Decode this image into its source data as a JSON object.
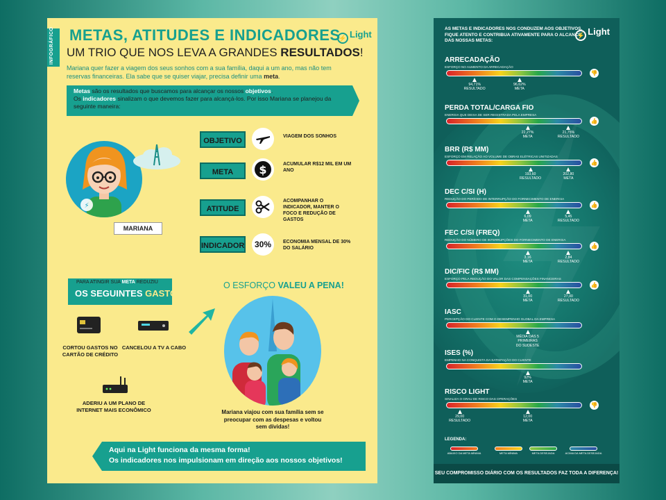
{
  "left": {
    "tab": "INFOGRÁFICO",
    "title": "METAS, ATITUDES E INDICADORES",
    "subtitle_pre": "UM TRIO QUE NOS LEVA A GRANDES ",
    "subtitle_bold": "RESULTADOS",
    "subtitle_post": "!",
    "logo": "Light",
    "intro_pre": "Mariana quer fazer a viagem dos seus sonhos com a sua família, daqui a um ano, mas não tem reservas financeiras. Ela sabe que se quiser viajar, precisa definir uma ",
    "intro_bold": "meta",
    "intro_post": ".",
    "box": {
      "w1": "Metas",
      "t1": " são os resultados que buscamos para alcançar os nossos ",
      "w2": "objetivos",
      "t2": ".",
      "t3": "Os ",
      "w3": "indicadores",
      "t4": " sinalizam o que devemos fazer para alcançá-los. Por isso Mariana se planejou da seguinte maneira:"
    },
    "name_tag": "MARIANA",
    "rows": [
      {
        "label": "OBJETIVO",
        "icon": "airplane-icon",
        "desc": "VIAGEM DOS SONHOS"
      },
      {
        "label": "META",
        "icon": "dollar-icon",
        "desc": "ACUMULAR R$12 MIL EM UM ANO"
      },
      {
        "label": "ATITUDE",
        "icon": "scissors-icon",
        "desc": "ACOMPANHAR O INDICADOR, MANTER O FOCO E REDUÇÃO DE GASTOS"
      },
      {
        "label": "INDICADOR",
        "icon": "percent-icon",
        "icon_text": "30%",
        "desc": "ECONOMIA MENSAL DE 30% DO SALÁRIO"
      }
    ],
    "gastos": {
      "small_pre": "PARA ATINGIR SUA ",
      "small_bold": "META",
      "small_post": " REDUZIU",
      "big_pre": "OS SEGUINTES ",
      "big_accent": "GASTOS"
    },
    "cuts": [
      {
        "icon": "credit-card-icon",
        "caption": "CORTOU GASTOS NO CARTÃO DE CRÉDITO"
      },
      {
        "icon": "tv-box-icon",
        "caption": "CANCELOU A TV A CABO"
      },
      {
        "icon": "router-icon",
        "caption": "ADERIU A UM PLANO DE INTERNET MAIS ECONÔMICO"
      }
    ],
    "esforco_pre": "O ESFORÇO ",
    "esforco_bold": "VALEU A PENA!",
    "family_caption": "Mariana viajou com sua família sem se preocupar com as despesas e voltou sem dívidas!",
    "bottom_line1": "Aqui na Light funciona da mesma forma!",
    "bottom_line2": "Os indicadores nos impulsionam em direção aos nossos objetivos!"
  },
  "right": {
    "header": "AS METAS E INDICADORES NOS CONDUZEM AOS OBJETIVOS. FIQUE ATENTO E CONTRIBUA ATIVAMENTE PARA O ALCANCE DAS NOSSAS METAS:",
    "logo": "Light",
    "indicators": [
      {
        "title": "ARRECADAÇÃO",
        "sub": "ESFORÇO NO AUMENTO DA ARRECADAÇÃO",
        "status": "bad",
        "markers": [
          {
            "pos": 0.21,
            "v": "94,71%",
            "l": "RESULTADO"
          },
          {
            "pos": 0.54,
            "v": "96,62%",
            "l": "META"
          }
        ]
      },
      {
        "title": "PERDA TOTAL/CARGA FIO",
        "sub": "ENERGIA QUE DEIXA DE SER REGISTRADA PELA EMPRESA",
        "status": "ok",
        "markers": [
          {
            "pos": 0.6,
            "v": "22,27%",
            "l": "META"
          },
          {
            "pos": 0.9,
            "v": "21,75%",
            "l": "RESULTADO"
          }
        ]
      },
      {
        "title": "BRR (R$ MM)",
        "sub": "ESFORÇO EM RELAÇÃO AO VOLUME DE OBRAS ELÉTRICAS UNITIZADAS",
        "status": "ok",
        "markers": [
          {
            "pos": 0.62,
            "v": "193,60",
            "l": "RESULTADO"
          },
          {
            "pos": 0.9,
            "v": "202,80",
            "l": "META"
          }
        ]
      },
      {
        "title": "DEC C/SI (H)",
        "sub": "REDUÇÃO DO PERÍODO DE INTERRUPÇÃO DO FORNECIMENTO DE ENERGIA",
        "status": "ok",
        "markers": [
          {
            "pos": 0.6,
            "v": "6,09",
            "l": "META"
          },
          {
            "pos": 0.9,
            "v": "5,45",
            "l": "RESULTADO"
          }
        ]
      },
      {
        "title": "FEC C/SI (FREQ)",
        "sub": "REDUÇÃO DO NÚMERO DE INTERRUPÇÕES DO FORNECIMENTO DE ENERGIA",
        "status": "ok",
        "markers": [
          {
            "pos": 0.6,
            "v": "3,16",
            "l": "META"
          },
          {
            "pos": 0.9,
            "v": "2,84",
            "l": "RESULTADO"
          }
        ]
      },
      {
        "title": "DIC/FIC (R$ MM)",
        "sub": "ESFORÇO PELA REDUÇÃO DO VALOR DAS COMPENSAÇÕES FINANCEIRAS",
        "status": "ok",
        "markers": [
          {
            "pos": 0.6,
            "v": "31,00",
            "l": "META"
          },
          {
            "pos": 0.9,
            "v": "27,00",
            "l": "RESULTADO"
          }
        ]
      },
      {
        "title": "IASC",
        "sub": "PERCEPÇÃO DO CLIENTE COM O DESEMPENHO GLOBAL DA EMPRESA",
        "status": "",
        "markers": [
          {
            "pos": 0.6,
            "v": "MÉDIA DAS  5 PRIMEIRAS",
            "l": "DO SUDESTE"
          }
        ]
      },
      {
        "title": "ISES (%)",
        "sub": "EMPENHO NA CONQUISTA DA SATISFAÇÃO DO CLIENTE",
        "status": "",
        "markers": [
          {
            "pos": 0.6,
            "v": "92%",
            "l": "META"
          }
        ]
      },
      {
        "title": "RISCO LIGHT",
        "sub": "SINALIZA O GRAU DE RISCO DAS OPERAÇÕES",
        "status": "bad",
        "markers": [
          {
            "pos": 0.1,
            "v": "29,00",
            "l": "RESULTADO"
          },
          {
            "pos": 0.6,
            "v": "12,00",
            "l": "META"
          }
        ]
      }
    ],
    "legend_title": "LEGENDA:",
    "legend": [
      {
        "label": "ABAIXO DA META MÍNIMA",
        "color": "#d8232a"
      },
      {
        "label": "META MÍNIMA",
        "color": "#f6d21c"
      },
      {
        "label": "META DESEJADA",
        "color": "#4bb748"
      },
      {
        "label": "ACIMA DA META DESEJADA",
        "color": "#2a4fa1"
      }
    ],
    "footer": "SEU COMPROMISSO DIÁRIO COM OS RESULTADOS FAZ TODA A DIFERENÇA!"
  }
}
